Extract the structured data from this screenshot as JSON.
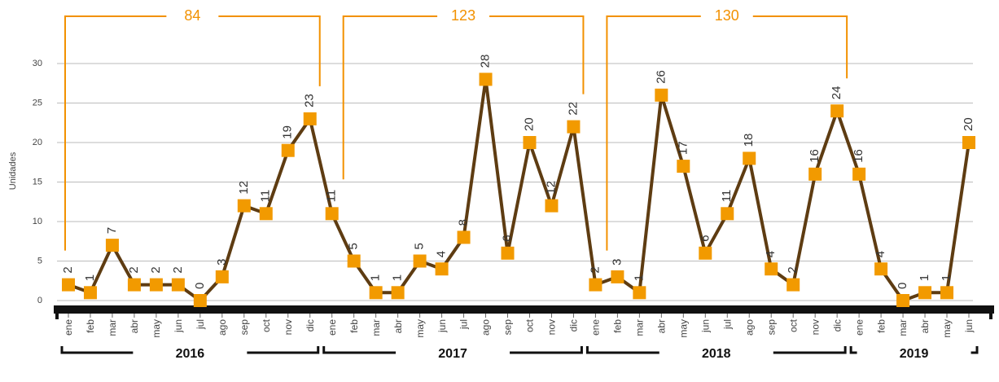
{
  "chart_data": {
    "type": "line",
    "y_label": "Unidades",
    "categories": [
      "ene",
      "feb",
      "mar",
      "abr",
      "may",
      "jun",
      "jul",
      "ago",
      "sep",
      "oct",
      "nov",
      "dic",
      "ene",
      "feb",
      "mar",
      "abr",
      "may",
      "jun",
      "jul",
      "ago",
      "sep",
      "oct",
      "nov",
      "dic",
      "ene",
      "feb",
      "mar",
      "abr",
      "may",
      "jun",
      "jul",
      "ago",
      "sep",
      "oct",
      "nov",
      "dic",
      "ene",
      "feb",
      "mar",
      "abr",
      "may",
      "jun"
    ],
    "values": [
      2,
      1,
      7,
      2,
      2,
      2,
      0,
      3,
      12,
      11,
      19,
      23,
      11,
      5,
      1,
      1,
      5,
      4,
      8,
      28,
      6,
      20,
      12,
      22,
      2,
      3,
      1,
      26,
      17,
      6,
      11,
      18,
      4,
      2,
      16,
      24,
      16,
      4,
      0,
      1,
      1,
      20
    ],
    "years": [
      "2016",
      "2017",
      "2018",
      "2019"
    ],
    "year_totals": [
      84,
      123,
      130
    ],
    "color": "#5e3c12",
    "marker_color": "#f29a00",
    "annotation_color": "#f29100",
    "ylim": [
      0,
      30
    ],
    "yticks": [
      0,
      5,
      10,
      15,
      20,
      25,
      30
    ],
    "grid": true
  }
}
